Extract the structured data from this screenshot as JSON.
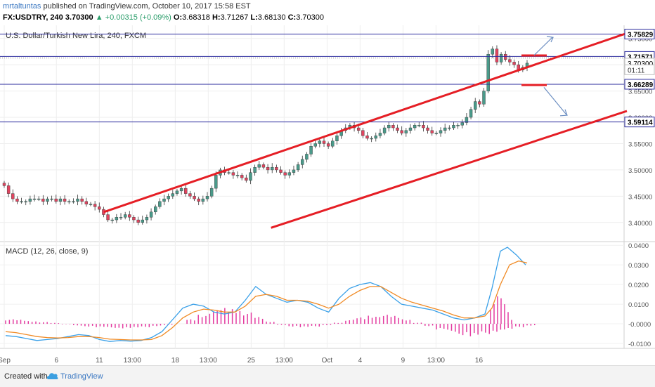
{
  "header": {
    "author": "mrtaltuntas",
    "published": "published on TradingView.com, October 10, 2017 15:58 EST",
    "symbol": "FX:USDTRY, 240",
    "last": "3.70300",
    "change": "+0.00315 (+0.09%)",
    "open_label": "O:",
    "open": "3.68318",
    "high_label": "H:",
    "high": "3.71267",
    "low_label": "L:",
    "low": "3.68130",
    "close_label": "C:",
    "close": "3.70300"
  },
  "footer": {
    "created_with": "Created with",
    "brand": "TradingView"
  },
  "colors": {
    "up": "#4a9a8a",
    "down": "#e0445f",
    "trend": "#e51e25",
    "hline": "#2b2b9e",
    "arrow": "#6d8fc2",
    "macd": "#3aa0e8",
    "signal": "#f08a24",
    "hist": "#e33ba0"
  },
  "chart_data": [
    {
      "type": "candlestick",
      "title": "U.S. Dollar/Turkish New Lira, 240, FXCM",
      "ylim": [
        3.365,
        3.775
      ],
      "y_ticks": [
        "3.40000",
        "3.45000",
        "3.50000",
        "3.55000",
        "3.60000",
        "3.65000",
        "3.70000",
        "3.75000"
      ],
      "price_labels": [
        {
          "text": "3.75829",
          "value": 3.75829,
          "style": "line"
        },
        {
          "text": "3.71571",
          "value": 3.71571,
          "style": "line"
        },
        {
          "text": "3.70300",
          "value": 3.703,
          "style": "last"
        },
        {
          "text": "01:11",
          "value": 3.6905,
          "style": "timer"
        },
        {
          "text": "3.66289",
          "value": 3.66289,
          "style": "line"
        },
        {
          "text": "3.59114",
          "value": 3.59114,
          "style": "line"
        }
      ],
      "horizontal_lines": [
        3.75829,
        3.71571,
        3.66289,
        3.59114
      ],
      "dotted_lines": [
        3.71267
      ],
      "trendlines": [
        {
          "x1": 9.0,
          "y1": 3.42,
          "x2": 16.2,
          "y2": 3.76
        },
        {
          "x1": 11.3,
          "y1": 3.39,
          "x2": 16.2,
          "y2": 3.612
        }
      ],
      "x_ticks": [
        "Sep",
        "6",
        "11",
        "13:00",
        "18",
        "13:00",
        "25",
        "13:00",
        "Oct",
        "4",
        "9",
        "13:00",
        "16"
      ],
      "x_tick_pos": [
        0.0,
        5.71,
        10.41,
        14.02,
        18.72,
        22.33,
        27.03,
        30.64,
        35.34,
        38.95,
        43.65,
        47.26,
        51.96
      ]
    },
    {
      "type": "line",
      "title": "MACD (12, 26, close, 9)",
      "ylim": [
        -0.0125,
        0.0415
      ],
      "y_ticks": [
        "-0.0100",
        "-0.0000",
        "0.0100",
        "0.0200",
        "0.0300",
        "0.0400"
      ],
      "series": [
        {
          "name": "MACD",
          "x": [
            0,
            1,
            2,
            3,
            4,
            5,
            6,
            7,
            8,
            9,
            10,
            11,
            12,
            13,
            14,
            15,
            16,
            17,
            18,
            19,
            20,
            21,
            22,
            23,
            24,
            25,
            26,
            27,
            28,
            29,
            30,
            31,
            32,
            33,
            34,
            35,
            36,
            37,
            38,
            39,
            40,
            41,
            42,
            43,
            44,
            45,
            46
          ],
          "values": [
            -0.006,
            -0.0065,
            -0.0075,
            -0.0085,
            -0.008,
            -0.0075,
            -0.0065,
            -0.0055,
            -0.006,
            -0.008,
            -0.009,
            -0.0085,
            -0.0088,
            -0.0085,
            -0.007,
            -0.004,
            0.002,
            0.008,
            0.01,
            0.009,
            0.006,
            0.005,
            0.006,
            0.012,
            0.019,
            0.015,
            0.013,
            0.011,
            0.012,
            0.011,
            0.008,
            0.006,
            0.013,
            0.018,
            0.02,
            0.021,
            0.019,
            0.014,
            0.01,
            0.009,
            0.008,
            0.007,
            0.005,
            0.003,
            0.002,
            0.003,
            0.005
          ]
        },
        {
          "name": "Signal",
          "x": [
            0,
            1,
            2,
            3,
            4,
            5,
            6,
            7,
            8,
            9,
            10,
            11,
            12,
            13,
            14,
            15,
            16,
            17,
            18,
            19,
            20,
            21,
            22,
            23,
            24,
            25,
            26,
            27,
            28,
            29,
            30,
            31,
            32,
            33,
            34,
            35,
            36,
            37,
            38,
            39,
            40,
            41,
            42,
            43,
            44,
            45,
            46
          ],
          "values": [
            -0.004,
            -0.0045,
            -0.0055,
            -0.0065,
            -0.007,
            -0.0072,
            -0.007,
            -0.0065,
            -0.0065,
            -0.007,
            -0.0078,
            -0.008,
            -0.0082,
            -0.0082,
            -0.008,
            -0.006,
            -0.002,
            0.003,
            0.006,
            0.0075,
            0.007,
            0.006,
            0.006,
            0.009,
            0.014,
            0.015,
            0.014,
            0.012,
            0.012,
            0.0115,
            0.01,
            0.008,
            0.01,
            0.014,
            0.017,
            0.019,
            0.019,
            0.016,
            0.013,
            0.011,
            0.0095,
            0.008,
            0.0065,
            0.0045,
            0.003,
            0.003,
            0.004
          ]
        }
      ],
      "histogram": [
        0.002,
        0.0018,
        0.0012,
        0.0008,
        0.0004,
        -0.0002,
        -0.0008,
        -0.0012,
        -0.0015,
        -0.0018,
        -0.002,
        -0.0018,
        -0.0015,
        -0.001,
        -0.0005,
        0.0,
        0.002,
        0.004,
        0.006,
        0.007,
        0.0065,
        0.005,
        0.003,
        0.001,
        -0.0005,
        -0.0012,
        -0.0015,
        -0.0012,
        -0.0006,
        0.0005,
        0.0018,
        0.0028,
        0.0036,
        0.004,
        0.0035,
        0.002,
        0.0005,
        -0.001,
        -0.0025,
        -0.0035,
        -0.005,
        -0.0055,
        -0.0045,
        -0.0035,
        -0.0025,
        -0.0015,
        -0.0008
      ]
    }
  ]
}
